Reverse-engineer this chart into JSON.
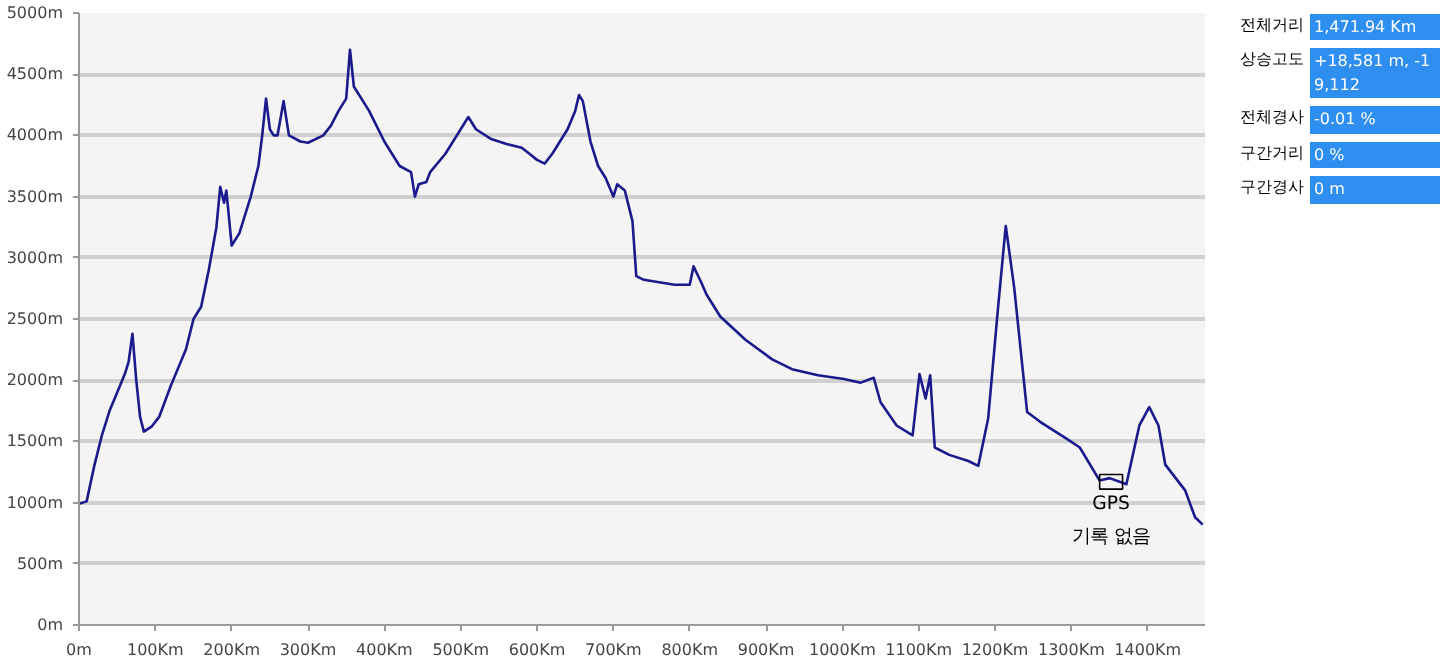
{
  "chart_data": {
    "type": "line",
    "x": [
      0,
      10,
      20,
      30,
      40,
      50,
      60,
      65,
      70,
      75,
      80,
      85,
      95,
      105,
      120,
      140,
      150,
      160,
      170,
      180,
      185,
      190,
      193,
      200,
      210,
      225,
      235,
      240,
      245,
      250,
      255,
      260,
      268,
      275,
      290,
      300,
      320,
      330,
      340,
      350,
      355,
      360,
      380,
      400,
      420,
      435,
      440,
      445,
      455,
      460,
      480,
      500,
      510,
      520,
      540,
      560,
      580,
      590,
      600,
      610,
      620,
      630,
      640,
      650,
      655,
      660,
      670,
      680,
      690,
      700,
      705,
      715,
      725,
      730,
      740,
      760,
      780,
      800,
      805,
      815,
      822,
      840,
      873,
      908,
      934,
      968,
      1002,
      1024,
      1041,
      1050,
      1071,
      1092,
      1101,
      1109,
      1115,
      1121,
      1140,
      1165,
      1178,
      1191,
      1204,
      1214,
      1225,
      1242,
      1259,
      1294,
      1311,
      1337,
      1350,
      1372,
      1389,
      1402,
      1414,
      1423,
      1449,
      1462,
      1472
    ],
    "series": [
      {
        "color": "#1a1a8c",
        "values": [
          990,
          1010,
          1300,
          1550,
          1750,
          1900,
          2050,
          2150,
          2380,
          2000,
          1700,
          1580,
          1620,
          1700,
          1950,
          2250,
          2500,
          2600,
          2900,
          3250,
          3580,
          3450,
          3550,
          3100,
          3200,
          3500,
          3750,
          4000,
          4300,
          4050,
          4000,
          4000,
          4280,
          4000,
          3950,
          3940,
          4000,
          4080,
          4200,
          4300,
          4700,
          4400,
          4200,
          3950,
          3750,
          3700,
          3500,
          3600,
          3620,
          3700,
          3850,
          4050,
          4150,
          4050,
          3970,
          3930,
          3900,
          3850,
          3800,
          3770,
          3850,
          3950,
          4050,
          4200,
          4330,
          4280,
          3950,
          3750,
          3650,
          3500,
          3600,
          3550,
          3300,
          2850,
          2820,
          2800,
          2780,
          2780,
          2930,
          2800,
          2700,
          2520,
          2330,
          2170,
          2090,
          2040,
          2010,
          1980,
          2020,
          1820,
          1630,
          1550,
          2050,
          1850,
          2040,
          1450,
          1390,
          1340,
          1300,
          1690,
          2600,
          3260,
          2760,
          1740,
          1660,
          1520,
          1450,
          1180,
          1200,
          1150,
          1630,
          1780,
          1630,
          1310,
          1100,
          880,
          820
        ]
      }
    ],
    "xlim": [
      0,
      1475
    ],
    "ylim": [
      0,
      5000
    ],
    "xticks": [
      {
        "value": 0,
        "label": "0m"
      },
      {
        "value": 100,
        "label": "100Km"
      },
      {
        "value": 200,
        "label": "200Km"
      },
      {
        "value": 300,
        "label": "300Km"
      },
      {
        "value": 400,
        "label": "400Km"
      },
      {
        "value": 500,
        "label": "500Km"
      },
      {
        "value": 600,
        "label": "600Km"
      },
      {
        "value": 700,
        "label": "700Km"
      },
      {
        "value": 800,
        "label": "800Km"
      },
      {
        "value": 900,
        "label": "900Km"
      },
      {
        "value": 1000,
        "label": "1000Km"
      },
      {
        "value": 1100,
        "label": "1100Km"
      },
      {
        "value": 1200,
        "label": "1200Km"
      },
      {
        "value": 1300,
        "label": "1300Km"
      },
      {
        "value": 1400,
        "label": "1400Km"
      }
    ],
    "yticks": [
      {
        "value": 0,
        "label": "0m"
      },
      {
        "value": 500,
        "label": "500m"
      },
      {
        "value": 1000,
        "label": "1000m"
      },
      {
        "value": 1500,
        "label": "1500m"
      },
      {
        "value": 2000,
        "label": "2000m"
      },
      {
        "value": 2500,
        "label": "2500m"
      },
      {
        "value": 3000,
        "label": "3000m"
      },
      {
        "value": 3500,
        "label": "3500m"
      },
      {
        "value": 4000,
        "label": "4000m"
      },
      {
        "value": 4500,
        "label": "4500m"
      },
      {
        "value": 5000,
        "label": "5000m"
      }
    ],
    "grid": "y",
    "marker": "none",
    "line_style": "solid",
    "annotations": [
      {
        "text": "GPS\n기록 없음",
        "x": 1352,
        "y": 1170
      },
      "전체거리",
      "1,471.94 Km",
      "상승고도",
      "+18,581 m, -19,112",
      "전체경사",
      "-0.01 %",
      "구간거리",
      "0 %",
      "구간경사",
      "0 m"
    ]
  }
}
